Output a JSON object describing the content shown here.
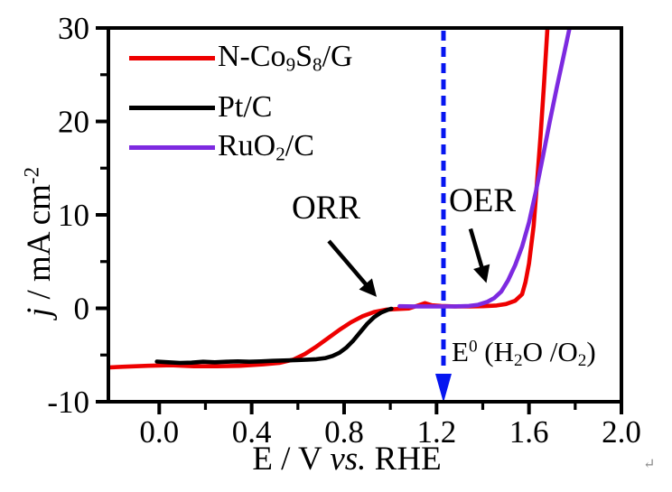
{
  "figure": {
    "background": "#ffffff",
    "frame_color": "#000000"
  },
  "chart_data": {
    "type": "line",
    "title": "",
    "xlabel": "E / V vs. RHE",
    "ylabel": "j / mA cm-2",
    "xlabel_segments": [
      {
        "t": "E / V "
      },
      {
        "t": "vs.",
        "s": "i"
      },
      {
        "t": " RHE"
      }
    ],
    "ylabel_segments": [
      {
        "t": "j",
        "s": "i"
      },
      {
        "t": " / mA cm"
      },
      {
        "t": "-2",
        "s": "sup"
      }
    ],
    "xlim": [
      -0.22,
      2.0
    ],
    "ylim": [
      -10,
      30
    ],
    "grid": false,
    "legend_position": "upper-left-inside",
    "x_ticks": {
      "major": [
        0.0,
        0.4,
        0.8,
        1.2,
        1.6,
        2.0
      ],
      "labels": [
        "0.0",
        "0.4",
        "0.8",
        "1.2",
        "1.6",
        "2.0"
      ],
      "minor": [
        0.2,
        0.6,
        1.0,
        1.4,
        1.8
      ]
    },
    "y_ticks": {
      "major": [
        -10,
        0,
        10,
        20,
        30
      ],
      "labels": [
        "-10",
        "0",
        "10",
        "20",
        "30"
      ],
      "minor": [
        -5,
        5,
        15,
        25
      ]
    },
    "series": [
      {
        "name": "N-Co9S8/G",
        "color": "#ee0000",
        "points": [
          [
            -0.23,
            -6.35
          ],
          [
            -0.15,
            -6.25
          ],
          [
            -0.05,
            -6.15
          ],
          [
            0.05,
            -6.1
          ],
          [
            0.15,
            -6.2
          ],
          [
            0.25,
            -6.2
          ],
          [
            0.35,
            -6.15
          ],
          [
            0.45,
            -6.0
          ],
          [
            0.52,
            -5.85
          ],
          [
            0.58,
            -5.5
          ],
          [
            0.63,
            -4.9
          ],
          [
            0.68,
            -4.1
          ],
          [
            0.73,
            -3.2
          ],
          [
            0.78,
            -2.3
          ],
          [
            0.83,
            -1.5
          ],
          [
            0.88,
            -0.85
          ],
          [
            0.93,
            -0.4
          ],
          [
            0.98,
            -0.15
          ],
          [
            1.03,
            -0.08
          ],
          [
            1.08,
            -0.02
          ],
          [
            1.12,
            0.3
          ],
          [
            1.15,
            0.55
          ],
          [
            1.18,
            0.32
          ],
          [
            1.22,
            0.25
          ],
          [
            1.28,
            0.2
          ],
          [
            1.34,
            0.2
          ],
          [
            1.4,
            0.22
          ],
          [
            1.46,
            0.3
          ],
          [
            1.5,
            0.45
          ],
          [
            1.54,
            0.8
          ],
          [
            1.57,
            1.5
          ],
          [
            1.585,
            2.8
          ],
          [
            1.6,
            4.8
          ],
          [
            1.62,
            8.8
          ],
          [
            1.635,
            13.5
          ],
          [
            1.65,
            18.5
          ],
          [
            1.665,
            24.0
          ],
          [
            1.68,
            30.0
          ],
          [
            1.687,
            32.5
          ]
        ]
      },
      {
        "name": "Pt/C",
        "color": "#000000",
        "points": [
          [
            -0.01,
            -5.7
          ],
          [
            0.04,
            -5.78
          ],
          [
            0.09,
            -5.85
          ],
          [
            0.14,
            -5.82
          ],
          [
            0.19,
            -5.72
          ],
          [
            0.24,
            -5.78
          ],
          [
            0.29,
            -5.72
          ],
          [
            0.34,
            -5.68
          ],
          [
            0.39,
            -5.72
          ],
          [
            0.44,
            -5.68
          ],
          [
            0.49,
            -5.62
          ],
          [
            0.54,
            -5.58
          ],
          [
            0.59,
            -5.55
          ],
          [
            0.64,
            -5.5
          ],
          [
            0.68,
            -5.45
          ],
          [
            0.72,
            -5.32
          ],
          [
            0.75,
            -5.1
          ],
          [
            0.78,
            -4.75
          ],
          [
            0.81,
            -4.2
          ],
          [
            0.84,
            -3.45
          ],
          [
            0.87,
            -2.55
          ],
          [
            0.9,
            -1.65
          ],
          [
            0.93,
            -0.95
          ],
          [
            0.96,
            -0.45
          ],
          [
            0.99,
            -0.15
          ],
          [
            1.005,
            -0.05
          ]
        ]
      },
      {
        "name": "RuO2/C",
        "color": "#7d2ae0",
        "points": [
          [
            1.04,
            0.22
          ],
          [
            1.1,
            0.2
          ],
          [
            1.16,
            0.2
          ],
          [
            1.22,
            0.2
          ],
          [
            1.28,
            0.2
          ],
          [
            1.34,
            0.25
          ],
          [
            1.38,
            0.38
          ],
          [
            1.42,
            0.7
          ],
          [
            1.45,
            1.1
          ],
          [
            1.48,
            1.8
          ],
          [
            1.51,
            3.0
          ],
          [
            1.54,
            4.6
          ],
          [
            1.57,
            6.6
          ],
          [
            1.6,
            9.2
          ],
          [
            1.63,
            12.5
          ],
          [
            1.66,
            16.2
          ],
          [
            1.69,
            20.0
          ],
          [
            1.72,
            23.6
          ],
          [
            1.75,
            27.0
          ],
          [
            1.78,
            30.5
          ],
          [
            1.79,
            31.8
          ]
        ]
      }
    ],
    "reference_vline": {
      "E": 1.23,
      "color": "#0616f0",
      "style": "dashed",
      "arrow": "down"
    }
  },
  "legend": {
    "items": [
      {
        "name": "N-Co9S8/G",
        "color": "#ee0000",
        "segments": [
          {
            "t": "N-Co"
          },
          {
            "t": "9",
            "s": "sub"
          },
          {
            "t": "S"
          },
          {
            "t": "8",
            "s": "sub"
          },
          {
            "t": "/G"
          }
        ]
      },
      {
        "name": "Pt/C",
        "color": "#000000",
        "segments": [
          {
            "t": "Pt/C"
          }
        ]
      },
      {
        "name": "RuO2/C",
        "color": "#7d2ae0",
        "segments": [
          {
            "t": "RuO"
          },
          {
            "t": "2",
            "s": "sub"
          },
          {
            "t": "/C"
          }
        ]
      }
    ]
  },
  "annotations": {
    "orr": {
      "text": "ORR",
      "arrow_color": "#000000",
      "arrow": {
        "from": [
          0.734,
          7.2
        ],
        "to": [
          0.9,
          2.4
        ]
      }
    },
    "oer": {
      "text": "OER",
      "arrow_color": "#000000",
      "arrow": {
        "from": [
          1.347,
          8.5
        ],
        "to": [
          1.398,
          4.2
        ]
      }
    },
    "e0": {
      "text": "E0 (H2O /O2)",
      "segments": [
        {
          "t": "E"
        },
        {
          "t": "0",
          "s": "sup"
        },
        {
          "t": " (H"
        },
        {
          "t": "2",
          "s": "sub"
        },
        {
          "t": "O /O"
        },
        {
          "t": "2",
          "s": "sub"
        },
        {
          "t": ")"
        }
      ]
    }
  },
  "artifacts": {
    "return_mark": "↵"
  }
}
